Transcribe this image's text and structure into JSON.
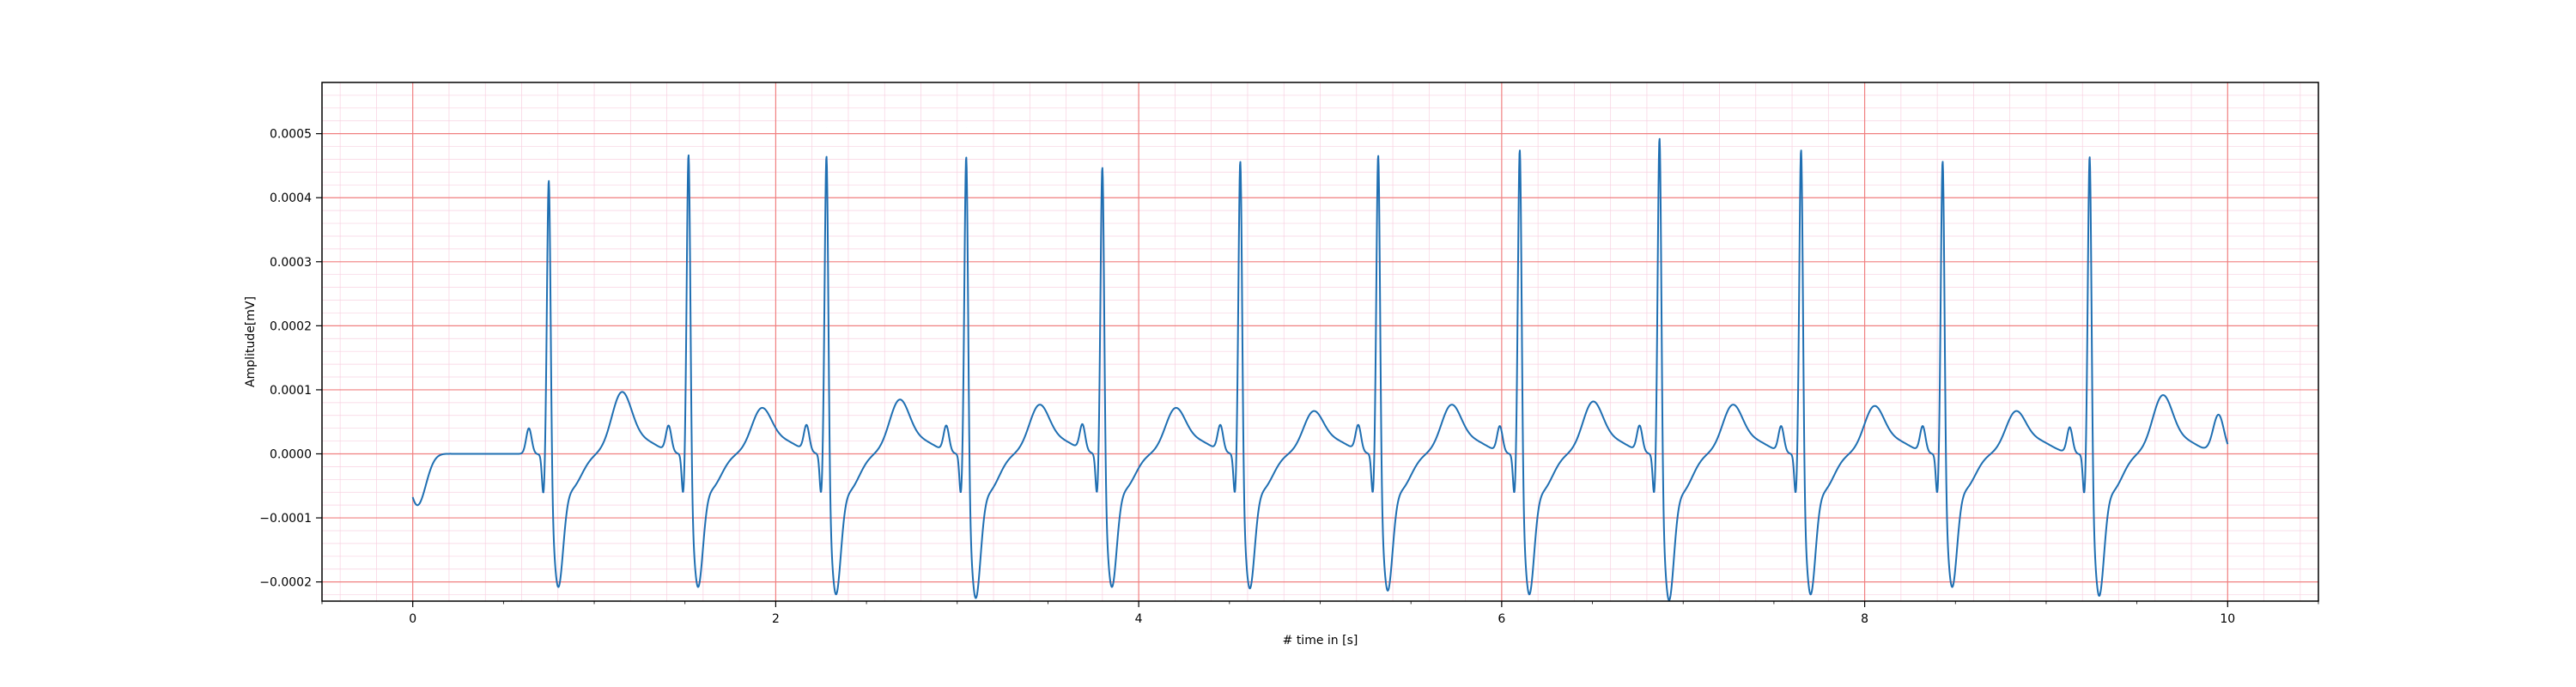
{
  "chart_data": {
    "type": "line",
    "title": "",
    "xlabel": "# time in [s]",
    "ylabel": "Amplitude[mV]",
    "xlim": [
      -0.5,
      10.5
    ],
    "ylim": [
      -0.00023,
      0.00058
    ],
    "xticks": [
      0,
      2,
      4,
      6,
      8,
      10
    ],
    "xtick_labels": [
      "0",
      "2",
      "4",
      "6",
      "8",
      "10"
    ],
    "yticks": [
      -0.0002,
      -0.0001,
      0.0,
      0.0001,
      0.0002,
      0.0003,
      0.0004,
      0.0005
    ],
    "ytick_labels": [
      "−0.0002",
      "−0.0001",
      "0.0000",
      "0.0001",
      "0.0002",
      "0.0003",
      "0.0004",
      "0.0005"
    ],
    "grid": {
      "major": true,
      "minor": true,
      "major_color": "#f08080",
      "minor_color": "#f8d0e0"
    },
    "legend": "none",
    "series": [
      {
        "color": "#1f6fb2",
        "start": {
          "x": 0.0,
          "y": -6.5e-05
        },
        "end": {
          "x": 10.0,
          "y": 3e-05
        },
        "beats": [
          {
            "r_time": 0.75,
            "r_peak": 0.00047,
            "s_min": -0.00018,
            "t_peak": 9e-05
          },
          {
            "r_time": 1.52,
            "r_peak": 0.00051,
            "s_min": -0.00018,
            "t_peak": 6.5e-05
          },
          {
            "r_time": 2.28,
            "r_peak": 0.00051,
            "s_min": -0.00019,
            "t_peak": 7.8e-05
          },
          {
            "r_time": 3.05,
            "r_peak": 0.00051,
            "s_min": -0.000195,
            "t_peak": 7e-05
          },
          {
            "r_time": 3.8,
            "r_peak": 0.00049,
            "s_min": -0.00018,
            "t_peak": 6.5e-05
          },
          {
            "r_time": 4.56,
            "r_peak": 0.0005,
            "s_min": -0.000182,
            "t_peak": 6e-05
          },
          {
            "r_time": 5.32,
            "r_peak": 0.00051,
            "s_min": -0.000185,
            "t_peak": 7e-05
          },
          {
            "r_time": 6.1,
            "r_peak": 0.00052,
            "s_min": -0.00019,
            "t_peak": 7.5e-05
          },
          {
            "r_time": 6.87,
            "r_peak": 0.00054,
            "s_min": -0.000198,
            "t_peak": 7e-05
          },
          {
            "r_time": 7.65,
            "r_peak": 0.00052,
            "s_min": -0.00019,
            "t_peak": 6.8e-05
          },
          {
            "r_time": 8.43,
            "r_peak": 0.0005,
            "s_min": -0.00018,
            "t_peak": 6e-05
          },
          {
            "r_time": 9.24,
            "r_peak": 0.00051,
            "s_min": -0.000192,
            "t_peak": 8.5e-05
          }
        ],
        "tail_bump": {
          "x": 9.95,
          "y": 6e-05
        }
      }
    ]
  }
}
